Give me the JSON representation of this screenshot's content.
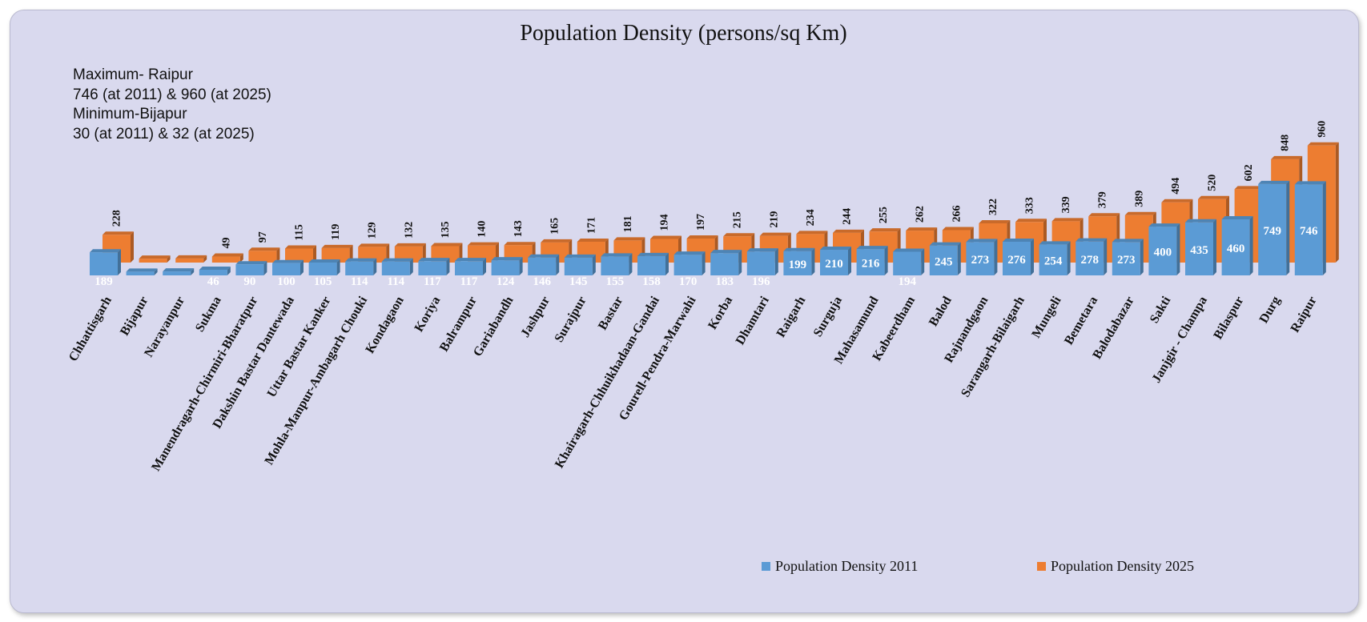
{
  "chart_data": {
    "type": "bar",
    "title": "Population Density (persons/sq Km)",
    "annotation": [
      "Maximum- Raipur",
      "746 (at 2011) & 960 (at 2025)",
      "Minimum-Bijapur",
      "30 (at 2011) & 32 (at 2025)"
    ],
    "categories": [
      "Chhattisgarh",
      "Bijapur",
      "Narayanpur",
      "Sukma",
      "Manendragarh-Chirmiri-Bharatpur",
      "Dakshin Bastar Dantewada",
      "Uttar Bastar Kanker",
      "Mohla-Manpur-Ambagarh Chouki",
      "Kondagaon",
      "Koriya",
      "Balrampur",
      "Gariabandh",
      "Jashpur",
      "Surajpur",
      "Bastar",
      "Khairagarh-Chhuikhadaan-Gandai",
      "Gourell-Pendra-Marwahi",
      "Korba",
      "Dhamtari",
      "Raigarh",
      "Surguja",
      "Mahasamund",
      "Kabeerdham",
      "Balod",
      "Rajnandgaon",
      "Sarangarh-Bilaigarh",
      "Mungeli",
      "Bemetara",
      "Balodabazar",
      "Sakti",
      "Janjgir - Champa",
      "Bilaspur",
      "Durg",
      "Raipur"
    ],
    "series": [
      {
        "name": "Population Density 2011",
        "color": "#5b9bd5",
        "values": [
          189,
          30,
          32,
          46,
          90,
          100,
          105,
          114,
          114,
          117,
          117,
          124,
          146,
          145,
          155,
          158,
          170,
          183,
          196,
          199,
          210,
          216,
          194,
          245,
          273,
          276,
          254,
          278,
          273,
          400,
          435,
          460,
          749,
          746
        ],
        "labels": [
          "189",
          "",
          "",
          "46",
          "90",
          "100",
          "105",
          "114",
          "114",
          "117",
          "117",
          "124",
          "146",
          "145",
          "155",
          "158",
          "170",
          "183",
          "196",
          "199",
          "210",
          "216",
          "194",
          "245",
          "273",
          "276",
          "254",
          "278",
          "273",
          "400",
          "435",
          "460",
          "749",
          "746"
        ]
      },
      {
        "name": "Population Density 2025",
        "color": "#ed7d31",
        "values": [
          228,
          32,
          34,
          49,
          97,
          115,
          119,
          129,
          132,
          135,
          140,
          143,
          165,
          171,
          181,
          194,
          197,
          215,
          219,
          234,
          244,
          255,
          262,
          266,
          322,
          333,
          339,
          379,
          389,
          494,
          520,
          602,
          848,
          960
        ],
        "labels": [
          "228",
          "",
          "",
          "49",
          "97",
          "115",
          "119",
          "129",
          "132",
          "135",
          "140",
          "143",
          "165",
          "171",
          "181",
          "194",
          "197",
          "215",
          "219",
          "234",
          "244",
          "255",
          "262",
          "266",
          "322",
          "333",
          "339",
          "379",
          "389",
          "494",
          "520",
          "602",
          "848",
          "960"
        ]
      }
    ],
    "legend_position": "bottom-right",
    "grid": false
  }
}
